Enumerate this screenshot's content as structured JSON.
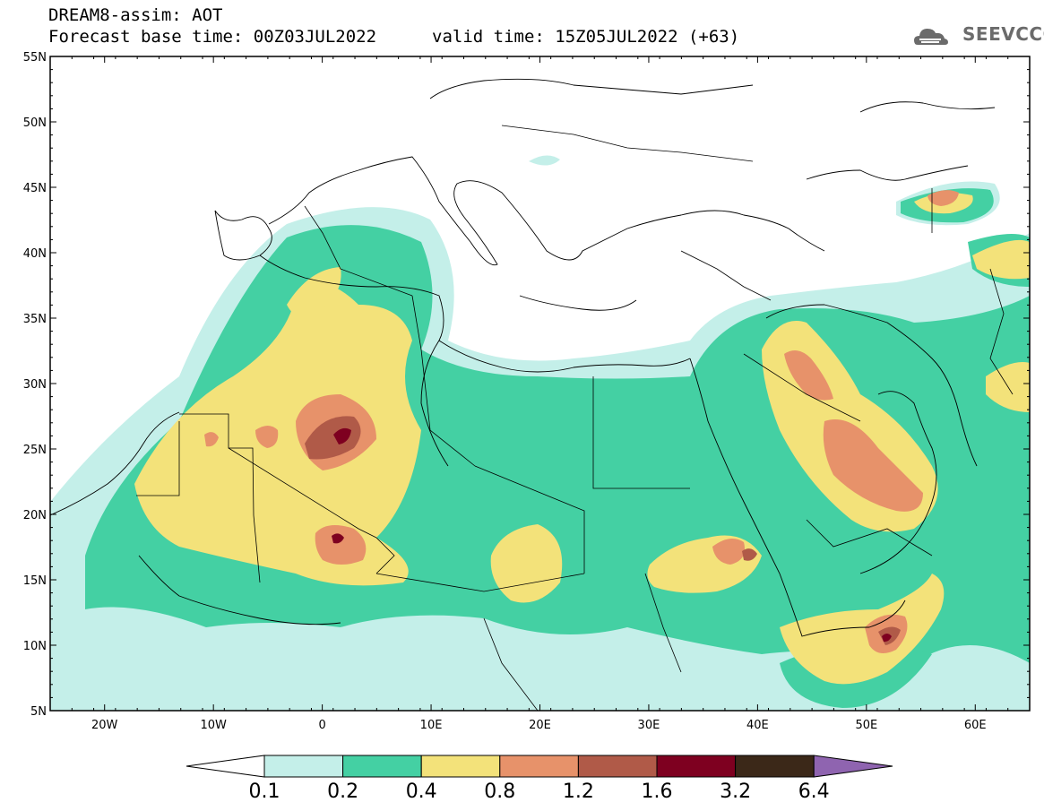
{
  "header": {
    "model": "DREAM8-assim: AOT",
    "base_time": "Forecast base time: 00Z03JUL2022",
    "valid_time": "valid time: 15Z05JUL2022 (+63)",
    "logo_text": "SEEVCCC"
  },
  "map": {
    "region": "North Africa, Middle East and Europe",
    "variable": "Aerosol optical thickness (dust)",
    "lon_range": [
      -25,
      65
    ],
    "lat_range": [
      5,
      55
    ],
    "lat_labels": [
      "55N",
      "50N",
      "45N",
      "40N",
      "35N",
      "30N",
      "25N",
      "20N",
      "15N",
      "10N",
      "5N"
    ],
    "lon_labels": [
      "20W",
      "10W",
      "0",
      "10E",
      "20E",
      "30E",
      "40E",
      "50E",
      "60E"
    ]
  },
  "colorbar": {
    "levels": [
      "0.1",
      "0.2",
      "0.4",
      "0.8",
      "1.2",
      "1.6",
      "3.2",
      "6.4"
    ],
    "colors": [
      "#ffffff",
      "#c4efe9",
      "#44d0a3",
      "#f3e27a",
      "#e7926a",
      "#b05a48",
      "#7e0020",
      "#3b2818",
      "#8f64b0"
    ]
  }
}
